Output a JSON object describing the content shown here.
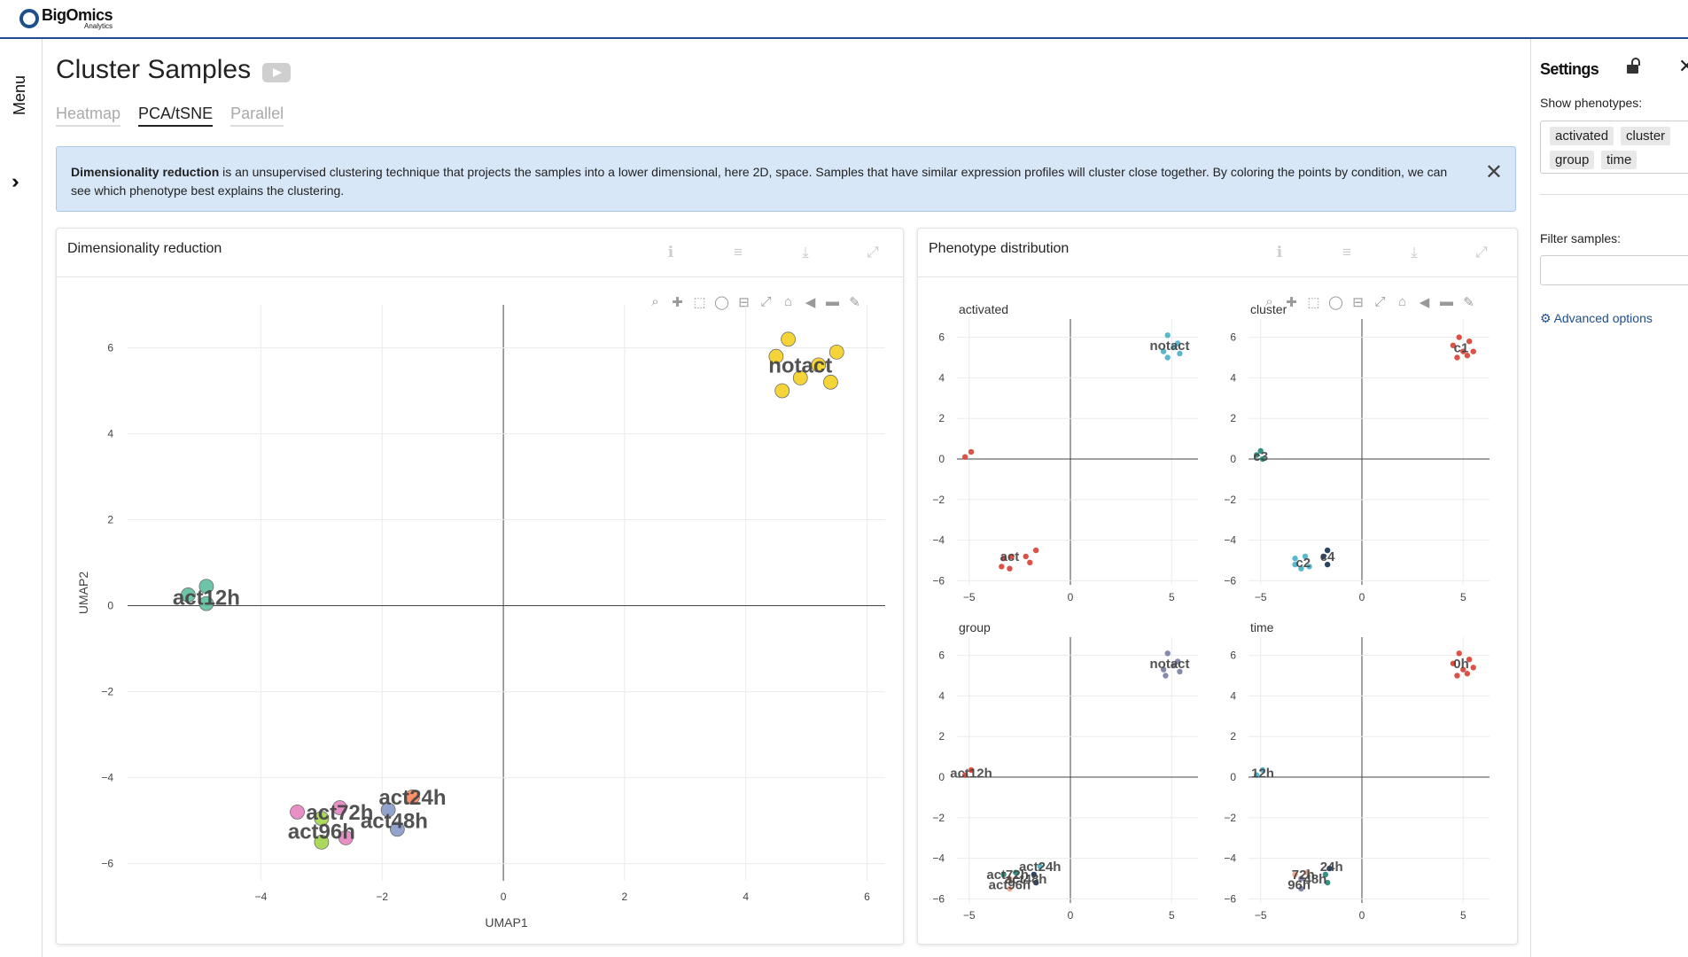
{
  "brand": {
    "name": "BigOmics",
    "sub": "Analytics"
  },
  "menu": {
    "label": "Menu"
  },
  "page": {
    "title": "Cluster Samples"
  },
  "tabs": [
    {
      "label": "Heatmap"
    },
    {
      "label": "PCA/tSNE"
    },
    {
      "label": "Parallel"
    }
  ],
  "info": {
    "bold": "Dimensionality reduction",
    "text": " is an unsupervised clustering technique that projects the samples into a lower dimensional, here 2D, space. Samples that have similar expression profiles will cluster close together. By coloring the points by condition, we can see which phenotype best explains the clustering."
  },
  "cards": {
    "dimred": {
      "title": "Dimensionality reduction"
    },
    "pheno": {
      "title": "Phenotype distribution"
    }
  },
  "settings": {
    "title": "Settings",
    "show_label": "Show phenotypes:",
    "phenotypes": [
      "activated",
      "cluster",
      "group",
      "time"
    ],
    "filter_label": "Filter samples:",
    "advanced": "Advanced options"
  },
  "colors": {
    "accent": "#1f4e8c",
    "info_bg": "#d7e7f8"
  },
  "chart_data": [
    {
      "type": "scatter",
      "title": "",
      "xlabel": "UMAP1",
      "ylabel": "UMAP2",
      "xlim": [
        -6.2,
        6.3
      ],
      "ylim": [
        -6.4,
        7.0
      ],
      "xticks": [
        -4,
        -2,
        0,
        2,
        4,
        6
      ],
      "yticks": [
        -6,
        -4,
        -2,
        0,
        2,
        4,
        6
      ],
      "grid": true,
      "series": [
        {
          "name": "notact",
          "color": "#f4d22d",
          "points": [
            [
              4.7,
              6.2
            ],
            [
              5.5,
              5.9
            ],
            [
              4.5,
              5.8
            ],
            [
              4.9,
              5.3
            ],
            [
              5.2,
              5.6
            ],
            [
              4.6,
              5.0
            ],
            [
              5.4,
              5.2
            ]
          ]
        },
        {
          "name": "act12h",
          "color": "#66c2a5",
          "points": [
            [
              -5.2,
              0.25
            ],
            [
              -4.9,
              0.45
            ],
            [
              -4.9,
              0.05
            ]
          ]
        },
        {
          "name": "act24h",
          "color": "#fc8d62",
          "points": [
            [
              -1.5,
              -4.45
            ]
          ]
        },
        {
          "name": "act48h",
          "color": "#8da0cb",
          "points": [
            [
              -1.9,
              -4.75
            ],
            [
              -1.75,
              -5.2
            ]
          ]
        },
        {
          "name": "act72h",
          "color": "#e78ac3",
          "points": [
            [
              -3.4,
              -4.8
            ],
            [
              -2.7,
              -4.7
            ],
            [
              -2.6,
              -5.4
            ]
          ]
        },
        {
          "name": "act96h",
          "color": "#a6d854",
          "points": [
            [
              -3.0,
              -4.95
            ],
            [
              -3.0,
              -5.5
            ]
          ]
        }
      ],
      "labels": [
        {
          "text": "notact",
          "x": 4.9,
          "y": 5.6
        },
        {
          "text": "act12h",
          "x": -4.9,
          "y": 0.2
        },
        {
          "text": "act24h",
          "x": -1.5,
          "y": -4.45
        },
        {
          "text": "act72h",
          "x": -2.7,
          "y": -4.8
        },
        {
          "text": "act48h",
          "x": -1.8,
          "y": -5.0
        },
        {
          "text": "act96h",
          "x": -3.0,
          "y": -5.25
        }
      ]
    },
    {
      "type": "scatter",
      "title": "activated",
      "xticks": [
        -5,
        0,
        5
      ],
      "yticks": [
        -6,
        -4,
        -2,
        0,
        2,
        4,
        6
      ],
      "xlim": [
        -5.6,
        6.3
      ],
      "ylim": [
        -6.2,
        6.9
      ],
      "series": [
        {
          "name": "notact",
          "color": "#4fb4c9",
          "points": [
            [
              4.8,
              6.1
            ],
            [
              5.3,
              5.7
            ],
            [
              4.6,
              5.3
            ],
            [
              5.1,
              5.5
            ],
            [
              5.4,
              5.2
            ],
            [
              4.8,
              5.0
            ]
          ]
        },
        {
          "name": "act",
          "color": "#d94a3d",
          "points": [
            [
              -5.2,
              0.1
            ],
            [
              -4.9,
              0.35
            ],
            [
              -3.3,
              -4.9
            ],
            [
              -2.9,
              -4.8
            ],
            [
              -2.2,
              -4.8
            ],
            [
              -2.0,
              -5.1
            ],
            [
              -3.0,
              -5.4
            ],
            [
              -3.4,
              -5.3
            ],
            [
              -1.7,
              -4.5
            ]
          ]
        }
      ],
      "labels": [
        {
          "text": "notact",
          "x": 4.9,
          "y": 5.6
        },
        {
          "text": "act",
          "x": -3.0,
          "y": -4.8
        }
      ]
    },
    {
      "type": "scatter",
      "title": "cluster",
      "xticks": [
        -5,
        0,
        5
      ],
      "yticks": [
        -6,
        -4,
        -2,
        0,
        2,
        4,
        6
      ],
      "xlim": [
        -5.6,
        6.3
      ],
      "ylim": [
        -6.2,
        6.9
      ],
      "series": [
        {
          "name": "c1",
          "color": "#d94a3d",
          "points": [
            [
              4.8,
              6.0
            ],
            [
              5.3,
              5.8
            ],
            [
              4.5,
              5.6
            ],
            [
              5.0,
              5.3
            ],
            [
              5.5,
              5.3
            ],
            [
              4.7,
              5.0
            ],
            [
              5.2,
              5.1
            ]
          ]
        },
        {
          "name": "c3",
          "color": "#2b8b7a",
          "points": [
            [
              -5.2,
              0.2
            ],
            [
              -5.0,
              0.4
            ],
            [
              -4.9,
              0.0
            ]
          ]
        },
        {
          "name": "c2",
          "color": "#4fb4c9",
          "points": [
            [
              -3.3,
              -4.9
            ],
            [
              -2.8,
              -4.8
            ],
            [
              -2.6,
              -5.3
            ],
            [
              -3.0,
              -5.4
            ],
            [
              -3.3,
              -5.2
            ]
          ]
        },
        {
          "name": "c4",
          "color": "#1f3b5c",
          "points": [
            [
              -1.7,
              -4.5
            ],
            [
              -1.9,
              -4.8
            ],
            [
              -1.7,
              -5.2
            ]
          ]
        }
      ],
      "labels": [
        {
          "text": "c1",
          "x": 4.9,
          "y": 5.5
        },
        {
          "text": "c3",
          "x": -5.0,
          "y": 0.15
        },
        {
          "text": "c4",
          "x": -1.7,
          "y": -4.8
        },
        {
          "text": "c2",
          "x": -2.9,
          "y": -5.1
        }
      ]
    },
    {
      "type": "scatter",
      "title": "group",
      "xticks": [
        -5,
        0,
        5
      ],
      "yticks": [
        -6,
        -4,
        -2,
        0,
        2,
        4,
        6
      ],
      "xlim": [
        -5.6,
        6.3
      ],
      "ylim": [
        -6.2,
        6.9
      ],
      "series": [
        {
          "name": "notact",
          "color": "#8084a8",
          "points": [
            [
              4.8,
              6.1
            ],
            [
              5.3,
              5.7
            ],
            [
              4.6,
              5.3
            ],
            [
              5.1,
              5.5
            ],
            [
              5.4,
              5.2
            ],
            [
              4.7,
              5.0
            ]
          ]
        },
        {
          "name": "act12h",
          "color": "#d94a3d",
          "points": [
            [
              -5.2,
              0.1
            ],
            [
              -4.9,
              0.35
            ]
          ]
        },
        {
          "name": "act24h",
          "color": "#4fb4c9",
          "points": [
            [
              -1.5,
              -4.4
            ]
          ]
        },
        {
          "name": "act48h",
          "color": "#1f3b5c",
          "points": [
            [
              -1.8,
              -4.8
            ],
            [
              -1.7,
              -5.2
            ]
          ]
        },
        {
          "name": "act72h",
          "color": "#2b8b7a",
          "points": [
            [
              -3.3,
              -4.8
            ],
            [
              -2.7,
              -4.7
            ]
          ]
        },
        {
          "name": "act96h",
          "color": "#f0a58a",
          "points": [
            [
              -3.0,
              -5.0
            ],
            [
              -3.0,
              -5.5
            ]
          ]
        }
      ],
      "labels": [
        {
          "text": "notact",
          "x": 4.9,
          "y": 5.6
        },
        {
          "text": "act12h",
          "x": -4.9,
          "y": 0.2
        },
        {
          "text": "act24h",
          "x": -1.5,
          "y": -4.4
        },
        {
          "text": "act72h",
          "x": -3.1,
          "y": -4.8
        },
        {
          "text": "act48h",
          "x": -2.2,
          "y": -5.0
        },
        {
          "text": "act96h",
          "x": -3.0,
          "y": -5.3
        }
      ]
    },
    {
      "type": "scatter",
      "title": "time",
      "xticks": [
        -5,
        0,
        5
      ],
      "yticks": [
        -6,
        -4,
        -2,
        0,
        2,
        4,
        6
      ],
      "xlim": [
        -5.6,
        6.3
      ],
      "ylim": [
        -6.2,
        6.9
      ],
      "series": [
        {
          "name": "0h",
          "color": "#d94a3d",
          "points": [
            [
              4.8,
              6.1
            ],
            [
              5.3,
              5.8
            ],
            [
              4.5,
              5.6
            ],
            [
              5.0,
              5.3
            ],
            [
              5.5,
              5.4
            ],
            [
              4.7,
              5.0
            ],
            [
              5.2,
              5.1
            ]
          ]
        },
        {
          "name": "12h",
          "color": "#4fb4c9",
          "points": [
            [
              -5.2,
              0.1
            ],
            [
              -4.9,
              0.35
            ]
          ]
        },
        {
          "name": "24h",
          "color": "#1f3b5c",
          "points": [
            [
              -1.6,
              -4.5
            ]
          ]
        },
        {
          "name": "48h",
          "color": "#2b8b7a",
          "points": [
            [
              -1.8,
              -4.8
            ],
            [
              -1.7,
              -5.2
            ]
          ]
        },
        {
          "name": "72h",
          "color": "#f0a58a",
          "points": [
            [
              -3.3,
              -4.8
            ],
            [
              -2.7,
              -4.7
            ]
          ]
        },
        {
          "name": "96h",
          "color": "#8084a8",
          "points": [
            [
              -3.0,
              -5.0
            ],
            [
              -3.0,
              -5.5
            ]
          ]
        }
      ],
      "labels": [
        {
          "text": "0h",
          "x": 4.9,
          "y": 5.6
        },
        {
          "text": "12h",
          "x": -4.9,
          "y": 0.2
        },
        {
          "text": "24h",
          "x": -1.5,
          "y": -4.4
        },
        {
          "text": "72h",
          "x": -2.9,
          "y": -4.8
        },
        {
          "text": "48h",
          "x": -2.3,
          "y": -5.0
        },
        {
          "text": "96h",
          "x": -3.1,
          "y": -5.3
        }
      ]
    }
  ]
}
